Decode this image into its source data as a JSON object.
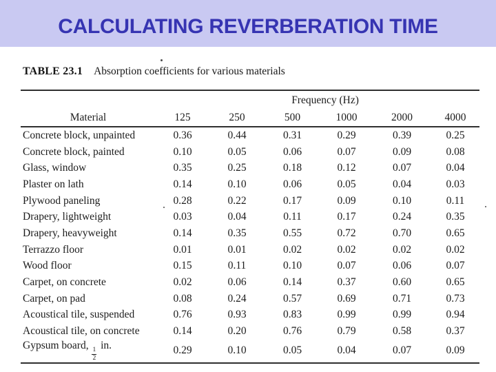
{
  "slide": {
    "title": "CALCULATING REVERBERATION TIME"
  },
  "colors": {
    "title_band_background": "#c9c9f2",
    "title_text": "#3634b2",
    "table_text": "#1c1c1c",
    "page_background": "#ffffff"
  },
  "table": {
    "label": "TABLE 23.1",
    "caption": "Absorption coefficients for various materials",
    "frequency_header": "Frequency (Hz)",
    "material_header": "Material",
    "frequency_columns": [
      "125",
      "250",
      "500",
      "1000",
      "2000",
      "4000"
    ],
    "rows": [
      {
        "material": "Concrete block, unpainted",
        "values": [
          "0.36",
          "0.44",
          "0.31",
          "0.29",
          "0.39",
          "0.25"
        ]
      },
      {
        "material": "Concrete block, painted",
        "values": [
          "0.10",
          "0.05",
          "0.06",
          "0.07",
          "0.09",
          "0.08"
        ]
      },
      {
        "material": "Glass, window",
        "values": [
          "0.35",
          "0.25",
          "0.18",
          "0.12",
          "0.07",
          "0.04"
        ]
      },
      {
        "material": "Plaster on lath",
        "values": [
          "0.14",
          "0.10",
          "0.06",
          "0.05",
          "0.04",
          "0.03"
        ]
      },
      {
        "material": "Plywood paneling",
        "values": [
          "0.28",
          "0.22",
          "0.17",
          "0.09",
          "0.10",
          "0.11"
        ]
      },
      {
        "material": "Drapery, lightweight",
        "values": [
          "0.03",
          "0.04",
          "0.11",
          "0.17",
          "0.24",
          "0.35"
        ]
      },
      {
        "material": "Drapery, heavyweight",
        "values": [
          "0.14",
          "0.35",
          "0.55",
          "0.72",
          "0.70",
          "0.65"
        ]
      },
      {
        "material": "Terrazzo floor",
        "values": [
          "0.01",
          "0.01",
          "0.02",
          "0.02",
          "0.02",
          "0.02"
        ]
      },
      {
        "material": "Wood floor",
        "values": [
          "0.15",
          "0.11",
          "0.10",
          "0.07",
          "0.06",
          "0.07"
        ]
      },
      {
        "material": "Carpet, on concrete",
        "values": [
          "0.02",
          "0.06",
          "0.14",
          "0.37",
          "0.60",
          "0.65"
        ]
      },
      {
        "material": "Carpet, on pad",
        "values": [
          "0.08",
          "0.24",
          "0.57",
          "0.69",
          "0.71",
          "0.73"
        ]
      },
      {
        "material": "Acoustical tile, suspended",
        "values": [
          "0.76",
          "0.93",
          "0.83",
          "0.99",
          "0.99",
          "0.94"
        ]
      },
      {
        "material": "Acoustical tile, on concrete",
        "values": [
          "0.14",
          "0.20",
          "0.76",
          "0.79",
          "0.58",
          "0.37"
        ]
      },
      {
        "material": "Gypsum board, ½ in.",
        "values": [
          "0.29",
          "0.10",
          "0.05",
          "0.04",
          "0.07",
          "0.09"
        ]
      }
    ]
  }
}
